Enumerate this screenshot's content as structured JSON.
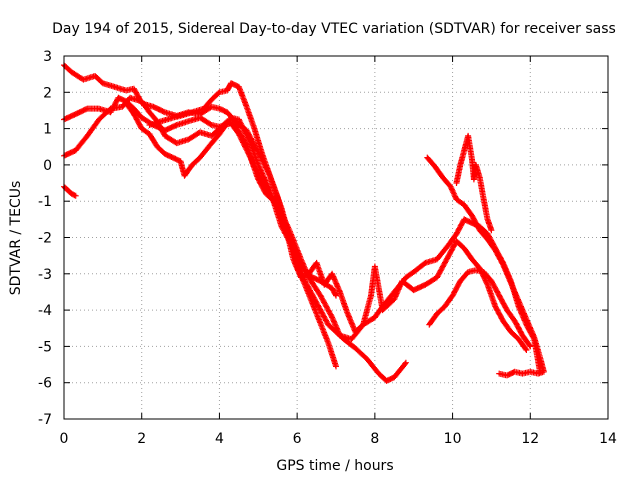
{
  "chart_data": {
    "type": "scatter",
    "title": "Day 194 of 2015, Sidereal Day-to-day VTEC variation (SDTVAR) for receiver sass",
    "xlabel": "GPS time / hours",
    "ylabel": "SDTVAR / TECUs",
    "xlim": [
      0,
      14
    ],
    "ylim": [
      -7,
      3
    ],
    "xticks": [
      "0",
      "2",
      "4",
      "6",
      "8",
      "10",
      "12",
      "14"
    ],
    "yticks": [
      "3",
      "2",
      "1",
      "0",
      "-1",
      "-2",
      "-3",
      "-4",
      "-5",
      "-6",
      "-7"
    ],
    "grid": true,
    "marker": "plus",
    "color": "#ff0000",
    "series": [
      {
        "name": "track-a",
        "points": [
          [
            0.0,
            2.75
          ],
          [
            0.2,
            2.55
          ],
          [
            0.5,
            2.35
          ],
          [
            0.8,
            2.45
          ],
          [
            1.0,
            2.25
          ],
          [
            1.3,
            2.15
          ],
          [
            1.6,
            2.05
          ],
          [
            1.8,
            2.1
          ],
          [
            2.0,
            1.7
          ],
          [
            2.3,
            1.6
          ],
          [
            2.6,
            1.45
          ],
          [
            2.9,
            1.35
          ],
          [
            3.2,
            1.45
          ],
          [
            3.5,
            1.4
          ],
          [
            3.8,
            1.6
          ],
          [
            4.0,
            1.55
          ],
          [
            4.2,
            1.45
          ],
          [
            4.4,
            1.2
          ],
          [
            4.7,
            0.95
          ],
          [
            5.0,
            0.35
          ],
          [
            5.3,
            -0.3
          ],
          [
            5.6,
            -1.2
          ],
          [
            5.8,
            -2.0
          ],
          [
            6.0,
            -2.6
          ],
          [
            6.3,
            -3.05
          ],
          [
            6.6,
            -3.2
          ],
          [
            6.9,
            -3.4
          ],
          [
            7.0,
            -3.6
          ]
        ]
      },
      {
        "name": "track-b",
        "points": [
          [
            0.0,
            1.25
          ],
          [
            0.3,
            1.4
          ],
          [
            0.6,
            1.55
          ],
          [
            0.9,
            1.55
          ],
          [
            1.2,
            1.45
          ],
          [
            1.4,
            1.85
          ],
          [
            1.6,
            1.75
          ],
          [
            1.8,
            1.55
          ],
          [
            2.0,
            1.3
          ],
          [
            2.3,
            1.1
          ],
          [
            2.6,
            0.95
          ],
          [
            2.9,
            1.1
          ],
          [
            3.2,
            1.2
          ],
          [
            3.5,
            1.3
          ],
          [
            3.8,
            1.1
          ],
          [
            4.0,
            1.05
          ],
          [
            4.3,
            1.15
          ],
          [
            4.5,
            0.85
          ],
          [
            4.8,
            0.2
          ],
          [
            5.0,
            -0.4
          ],
          [
            5.2,
            -0.8
          ],
          [
            5.5,
            -1.1
          ],
          [
            5.8,
            -1.8
          ],
          [
            6.1,
            -2.6
          ],
          [
            6.3,
            -3.1
          ],
          [
            6.6,
            -3.6
          ],
          [
            6.9,
            -4.2
          ],
          [
            7.1,
            -4.7
          ],
          [
            7.4,
            -4.8
          ],
          [
            7.7,
            -4.4
          ],
          [
            8.0,
            -4.2
          ],
          [
            8.2,
            -3.9
          ],
          [
            8.5,
            -3.5
          ],
          [
            8.8,
            -3.1
          ],
          [
            9.0,
            -2.95
          ],
          [
            9.3,
            -2.7
          ],
          [
            9.6,
            -2.6
          ],
          [
            9.9,
            -2.2
          ],
          [
            10.1,
            -1.9
          ],
          [
            10.3,
            -1.5
          ],
          [
            10.5,
            -1.6
          ],
          [
            10.7,
            -1.7
          ],
          [
            10.9,
            -1.9
          ],
          [
            11.1,
            -2.3
          ],
          [
            11.3,
            -2.7
          ],
          [
            11.5,
            -3.2
          ],
          [
            11.7,
            -3.9
          ],
          [
            11.9,
            -4.4
          ],
          [
            12.1,
            -4.8
          ],
          [
            12.25,
            -5.7
          ]
        ]
      },
      {
        "name": "track-c",
        "points": [
          [
            0.0,
            0.25
          ],
          [
            0.3,
            0.4
          ],
          [
            0.6,
            0.8
          ],
          [
            0.9,
            1.25
          ],
          [
            1.2,
            1.55
          ],
          [
            1.5,
            1.6
          ],
          [
            1.7,
            1.85
          ],
          [
            2.0,
            1.75
          ],
          [
            2.2,
            1.45
          ],
          [
            2.4,
            1.2
          ],
          [
            2.6,
            0.8
          ],
          [
            2.9,
            0.6
          ],
          [
            3.2,
            0.7
          ],
          [
            3.5,
            0.9
          ],
          [
            3.8,
            0.8
          ],
          [
            4.0,
            1.0
          ],
          [
            4.2,
            1.2
          ],
          [
            4.4,
            1.1
          ],
          [
            4.7,
            0.55
          ],
          [
            4.9,
            -0.05
          ],
          [
            5.2,
            -0.6
          ],
          [
            5.5,
            -1.2
          ],
          [
            5.8,
            -2.0
          ],
          [
            6.0,
            -2.8
          ],
          [
            6.2,
            -3.3
          ],
          [
            6.5,
            -4.1
          ],
          [
            6.8,
            -4.9
          ],
          [
            7.0,
            -5.55
          ]
        ]
      },
      {
        "name": "track-d",
        "points": [
          [
            1.6,
            1.7
          ],
          [
            1.8,
            1.4
          ],
          [
            2.0,
            1.0
          ],
          [
            2.2,
            0.85
          ],
          [
            2.4,
            0.5
          ],
          [
            2.6,
            0.3
          ],
          [
            2.8,
            0.2
          ],
          [
            3.0,
            0.1
          ],
          [
            3.1,
            -0.3
          ],
          [
            3.3,
            0.0
          ],
          [
            3.5,
            0.2
          ],
          [
            3.8,
            0.6
          ],
          [
            4.0,
            0.85
          ],
          [
            4.3,
            1.3
          ],
          [
            4.5,
            1.25
          ],
          [
            4.8,
            0.6
          ],
          [
            5.0,
            0.0
          ],
          [
            5.3,
            -0.7
          ],
          [
            5.6,
            -1.7
          ],
          [
            5.9,
            -2.3
          ],
          [
            6.2,
            -3.2
          ],
          [
            6.5,
            -3.8
          ],
          [
            6.8,
            -4.4
          ],
          [
            7.2,
            -4.8
          ],
          [
            7.5,
            -5.05
          ],
          [
            7.8,
            -5.35
          ],
          [
            8.1,
            -5.75
          ],
          [
            8.3,
            -5.95
          ],
          [
            8.5,
            -5.85
          ],
          [
            8.8,
            -5.45
          ]
        ]
      },
      {
        "name": "track-e",
        "points": [
          [
            2.2,
            1.1
          ],
          [
            2.5,
            1.2
          ],
          [
            2.8,
            1.3
          ],
          [
            3.0,
            1.35
          ],
          [
            3.3,
            1.45
          ],
          [
            3.6,
            1.55
          ],
          [
            3.8,
            1.8
          ],
          [
            4.0,
            2.0
          ],
          [
            4.2,
            2.05
          ],
          [
            4.3,
            2.25
          ],
          [
            4.5,
            2.15
          ],
          [
            4.7,
            1.6
          ],
          [
            4.9,
            1.0
          ],
          [
            5.1,
            0.3
          ],
          [
            5.3,
            -0.3
          ],
          [
            5.5,
            -0.9
          ],
          [
            5.7,
            -1.7
          ],
          [
            5.9,
            -2.6
          ],
          [
            6.1,
            -3.1
          ],
          [
            6.3,
            -3.0
          ],
          [
            6.5,
            -2.7
          ],
          [
            6.7,
            -3.3
          ],
          [
            6.9,
            -3.0
          ],
          [
            7.1,
            -3.5
          ],
          [
            7.3,
            -4.1
          ],
          [
            7.5,
            -4.6
          ],
          [
            7.7,
            -4.4
          ],
          [
            7.9,
            -3.6
          ],
          [
            8.0,
            -2.8
          ],
          [
            8.2,
            -4.0
          ],
          [
            8.5,
            -3.7
          ],
          [
            8.7,
            -3.2
          ],
          [
            9.0,
            -3.45
          ],
          [
            9.3,
            -3.3
          ],
          [
            9.6,
            -3.1
          ],
          [
            9.9,
            -2.5
          ],
          [
            10.1,
            -2.1
          ],
          [
            10.3,
            -2.3
          ],
          [
            10.5,
            -2.6
          ],
          [
            10.7,
            -2.85
          ],
          [
            10.9,
            -3.3
          ],
          [
            11.1,
            -3.9
          ],
          [
            11.3,
            -4.3
          ],
          [
            11.5,
            -4.6
          ],
          [
            11.7,
            -4.8
          ],
          [
            11.9,
            -5.1
          ]
        ]
      },
      {
        "name": "track-f",
        "points": [
          [
            9.35,
            0.2
          ],
          [
            9.55,
            -0.05
          ],
          [
            9.75,
            -0.35
          ],
          [
            9.95,
            -0.6
          ],
          [
            10.1,
            -0.95
          ],
          [
            10.3,
            -1.1
          ],
          [
            10.5,
            -1.4
          ],
          [
            10.7,
            -1.8
          ],
          [
            10.9,
            -2.05
          ],
          [
            11.1,
            -2.35
          ],
          [
            11.3,
            -2.75
          ],
          [
            11.5,
            -3.25
          ],
          [
            11.7,
            -3.75
          ],
          [
            11.9,
            -4.25
          ],
          [
            12.1,
            -4.75
          ],
          [
            12.25,
            -5.3
          ],
          [
            12.35,
            -5.7
          ],
          [
            12.2,
            -5.75
          ],
          [
            12.0,
            -5.7
          ],
          [
            11.8,
            -5.75
          ],
          [
            11.6,
            -5.7
          ],
          [
            11.4,
            -5.8
          ],
          [
            11.2,
            -5.75
          ]
        ]
      },
      {
        "name": "track-g",
        "points": [
          [
            9.4,
            -4.4
          ],
          [
            9.6,
            -4.1
          ],
          [
            9.8,
            -3.9
          ],
          [
            10.0,
            -3.6
          ],
          [
            10.2,
            -3.2
          ],
          [
            10.4,
            -2.95
          ],
          [
            10.6,
            -2.9
          ],
          [
            10.8,
            -2.95
          ],
          [
            11.0,
            -3.2
          ],
          [
            11.2,
            -3.6
          ],
          [
            11.4,
            -4.0
          ],
          [
            11.6,
            -4.3
          ],
          [
            11.8,
            -4.7
          ],
          [
            12.0,
            -5.0
          ]
        ]
      },
      {
        "name": "track-h",
        "points": [
          [
            10.1,
            -0.5
          ],
          [
            10.2,
            0.0
          ],
          [
            10.3,
            0.4
          ],
          [
            10.4,
            0.8
          ],
          [
            10.5,
            0.15
          ],
          [
            10.55,
            -0.4
          ],
          [
            10.6,
            0.0
          ],
          [
            10.7,
            -0.35
          ],
          [
            10.8,
            -0.95
          ],
          [
            10.9,
            -1.5
          ],
          [
            11.0,
            -1.8
          ]
        ]
      },
      {
        "name": "track-i",
        "points": [
          [
            0.0,
            -0.6
          ],
          [
            0.1,
            -0.7
          ],
          [
            0.2,
            -0.8
          ],
          [
            0.3,
            -0.85
          ]
        ]
      }
    ]
  }
}
